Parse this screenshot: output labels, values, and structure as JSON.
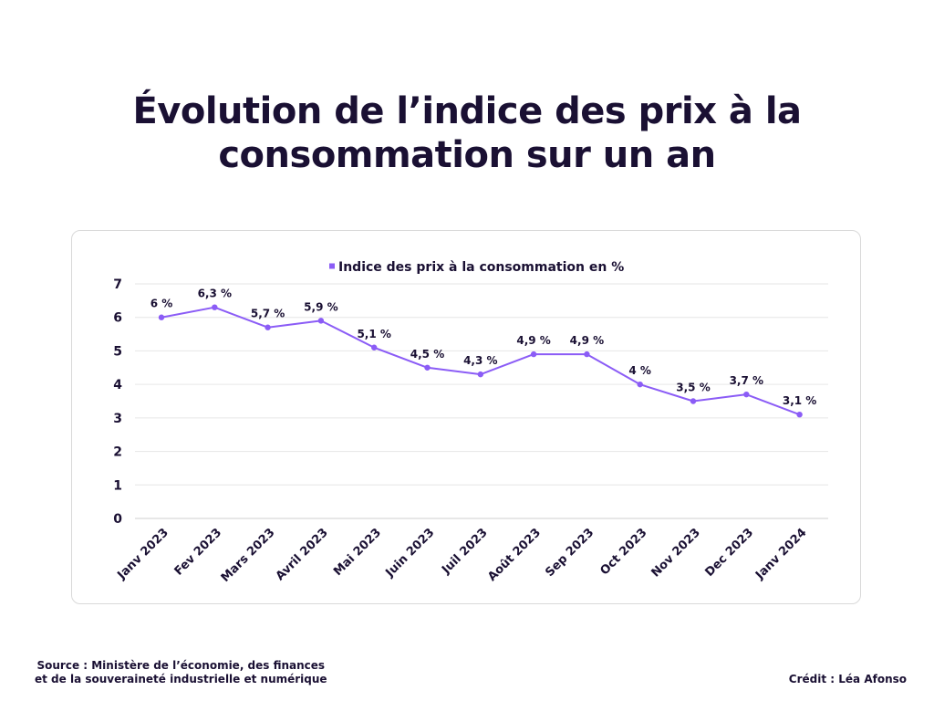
{
  "title": {
    "line1": "Évolution de l’indice des prix à la",
    "line2": "consommation sur un an"
  },
  "footer": {
    "source_line1": "Source : Ministère de l’économie, des finances",
    "source_line2": "et de la souveraineté industrielle et numérique",
    "credit": "Crédit : Léa Afonso"
  },
  "colors": {
    "series": "#8b5cf6",
    "text": "#1a1033",
    "grid": "#e6e6e6"
  },
  "chart_data": {
    "type": "line",
    "categories": [
      "Janv 2023",
      "Fev 2023",
      "Mars 2023",
      "Avril 2023",
      "Mai 2023",
      "Juin 2023",
      "Juil 2023",
      "Août 2023",
      "Sep 2023",
      "Oct 2023",
      "Nov 2023",
      "Dec 2023",
      "Janv 2024"
    ],
    "series": [
      {
        "name": "Indice des prix à la consommation en %",
        "values": [
          6,
          6.3,
          5.7,
          5.9,
          5.1,
          4.5,
          4.3,
          4.9,
          4.9,
          4,
          3.5,
          3.7,
          3.1
        ],
        "labels": [
          "6 %",
          "6,3 %",
          "5,7 %",
          "5,9 %",
          "5,1 %",
          "4,5 %",
          "4,3 %",
          "4,9 %",
          "4,9 %",
          "4 %",
          "3,5 %",
          "3,7 %",
          "3,1 %"
        ]
      }
    ],
    "ylim": [
      0,
      7
    ],
    "yticks": [
      "0",
      "1",
      "2",
      "3",
      "4",
      "5",
      "6",
      "7"
    ],
    "grid": true,
    "legend": "top-center"
  }
}
